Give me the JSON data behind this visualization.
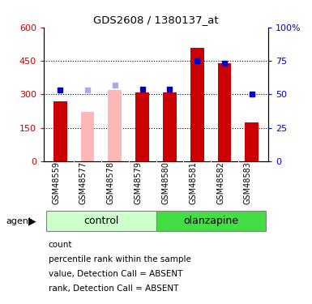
{
  "title": "GDS2608 / 1380137_at",
  "samples": [
    "GSM48559",
    "GSM48577",
    "GSM48578",
    "GSM48579",
    "GSM48580",
    "GSM48581",
    "GSM48582",
    "GSM48583"
  ],
  "red_bars": [
    270,
    0,
    0,
    310,
    310,
    510,
    440,
    175
  ],
  "pink_bars": [
    0,
    220,
    320,
    0,
    0,
    0,
    0,
    0
  ],
  "blue_squares_pct": [
    53,
    0,
    0,
    54,
    54,
    75,
    73,
    50
  ],
  "light_blue_squares_pct": [
    0,
    53,
    57,
    0,
    0,
    0,
    0,
    0
  ],
  "absent_mask": [
    false,
    true,
    true,
    false,
    false,
    false,
    false,
    false
  ],
  "ylim_left": [
    0,
    600
  ],
  "ylim_right": [
    0,
    100
  ],
  "yticks_left": [
    0,
    150,
    300,
    450,
    600
  ],
  "yticks_right": [
    0,
    25,
    50,
    75,
    100
  ],
  "ytick_labels_left": [
    "0",
    "150",
    "300",
    "450",
    "600"
  ],
  "ytick_labels_right": [
    "0",
    "25",
    "50",
    "75",
    "100%"
  ],
  "red_color": "#CC0000",
  "pink_color": "#FFB6B6",
  "blue_color": "#0000CC",
  "light_blue_color": "#AAAAEE",
  "bar_width": 0.5,
  "control_color_light": "#CCFFCC",
  "control_color_dark": "#44DD44",
  "agent_label": "agent",
  "control_label": "control",
  "olanzapine_label": "olanzapine",
  "legend_items": [
    {
      "color": "#CC0000",
      "label": "count"
    },
    {
      "color": "#0000CC",
      "label": "percentile rank within the sample"
    },
    {
      "color": "#FFB6B6",
      "label": "value, Detection Call = ABSENT"
    },
    {
      "color": "#AAAAEE",
      "label": "rank, Detection Call = ABSENT"
    }
  ]
}
